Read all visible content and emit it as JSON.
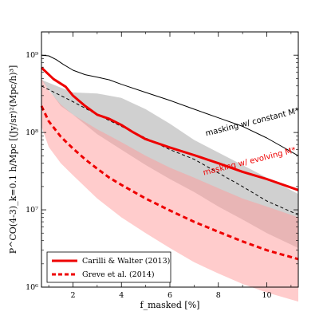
{
  "chart_data": {
    "type": "line",
    "xlabel": "f_masked  [%]",
    "ylabel": "P^CO(4-3)_k=0.1 h/Mpc  [(Jy/sr)²(Mpc/h)³]",
    "xlim": [
      0.7,
      11.3
    ],
    "ylim": [
      1000000.0,
      2000000000.0
    ],
    "yscale": "log",
    "grid": false,
    "legend": {
      "position": "bottom-left",
      "entries": [
        "Carilli & Walter (2013)",
        "Greve et al. (2014)"
      ]
    },
    "x_ticks": [
      {
        "value": 2,
        "label": "2"
      },
      {
        "value": 4,
        "label": "4"
      },
      {
        "value": 6,
        "label": "6"
      },
      {
        "value": 8,
        "label": "8"
      },
      {
        "value": 10,
        "label": "10"
      }
    ],
    "y_ticks": [
      {
        "value": 1000000.0,
        "label": "10⁶"
      },
      {
        "value": 10000000.0,
        "label": "10⁷"
      },
      {
        "value": 100000000.0,
        "label": "10⁸"
      },
      {
        "value": 1000000000.0,
        "label": "10⁹"
      }
    ],
    "annotations": [
      {
        "text": "masking w/ constant M*",
        "color": "#000000",
        "x": 7.5,
        "y": 90000000.0
      },
      {
        "text": "masking w/ evolving M*",
        "color": "#ee0000",
        "x": 7.4,
        "y": 28000000.0
      }
    ],
    "series": [
      {
        "name": "Carilli & Walter (2013)",
        "style": "solid-thick",
        "color": "#ee0000",
        "x": [
          0.7,
          1.2,
          1.7,
          2.0,
          2.5,
          3.0,
          3.5,
          4.0,
          4.5,
          5.0,
          6.0,
          7.0,
          8.0,
          9.0,
          10.0,
          11.3
        ],
        "y": [
          690000000.0,
          490000000.0,
          390000000.0,
          300000000.0,
          220000000.0,
          170000000.0,
          150000000.0,
          125000000.0,
          100000000.0,
          82000000.0,
          64000000.0,
          51000000.0,
          40000000.0,
          31000000.0,
          25000000.0,
          18000000.0
        ]
      },
      {
        "name": "Greve et al. (2014)",
        "style": "dashed-thick",
        "color": "#ee0000",
        "x": [
          0.7,
          1.0,
          1.5,
          2.0,
          2.5,
          3.0,
          3.5,
          4.0,
          5.0,
          6.0,
          7.0,
          8.0,
          9.0,
          10.0,
          11.3
        ],
        "y": [
          220000000.0,
          140000000.0,
          88000000.0,
          62000000.0,
          45000000.0,
          34000000.0,
          26000000.0,
          21000000.0,
          14000000.0,
          9800000.0,
          7000000.0,
          5200000.0,
          3900000.0,
          3000000.0,
          2300000.0
        ]
      },
      {
        "style": "thin-solid",
        "color": "#000000",
        "x": [
          0.7,
          1.0,
          1.3,
          1.6,
          2.0,
          2.5,
          3.0,
          3.5,
          4.0,
          5.0,
          6.0,
          7.0,
          8.0,
          9.0,
          10.0,
          11.3
        ],
        "y": [
          1000000000.0,
          980000000.0,
          880000000.0,
          760000000.0,
          640000000.0,
          560000000.0,
          520000000.0,
          480000000.0,
          420000000.0,
          330000000.0,
          260000000.0,
          200000000.0,
          155000000.0,
          120000000.0,
          85000000.0,
          50000000.0
        ]
      },
      {
        "style": "thin-dashed",
        "color": "#000000",
        "x": [
          0.7,
          1.5,
          2.0,
          3.0,
          4.0,
          5.0,
          6.0,
          7.0,
          8.0,
          9.0,
          10.0,
          11.3
        ],
        "y": [
          400000000.0,
          300000000.0,
          250000000.0,
          170000000.0,
          120000000.0,
          85000000.0,
          60000000.0,
          45000000.0,
          30000000.0,
          20000000.0,
          13000000.0,
          8600000.0
        ]
      }
    ],
    "bands": [
      {
        "color": "#c8c8c8",
        "opacity": 0.85,
        "x": [
          0.7,
          1.5,
          2.0,
          3.0,
          4.0,
          5.0,
          6.0,
          7.0,
          8.0,
          9.0,
          10.0,
          11.3
        ],
        "lower": [
          480000000.0,
          220000000.0,
          170000000.0,
          95000000.0,
          60000000.0,
          38000000.0,
          25000000.0,
          17000000.0,
          11000000.0,
          7500000.0,
          5000000.0,
          3200000.0
        ],
        "upper": [
          480000000.0,
          380000000.0,
          330000000.0,
          320000000.0,
          280000000.0,
          200000000.0,
          130000000.0,
          80000000.0,
          55000000.0,
          38000000.0,
          26000000.0,
          16000000.0
        ]
      },
      {
        "color": "#ff9999",
        "opacity": 0.5,
        "x": [
          0.7,
          1.0,
          1.5,
          2.0,
          3.0,
          4.0,
          5.0,
          6.0,
          7.0,
          8.0,
          9.0,
          10.0,
          11.3
        ],
        "lower": [
          120000000.0,
          65000000.0,
          40000000.0,
          28000000.0,
          14000000.0,
          8000000.0,
          5000000.0,
          3200000.0,
          2100000.0,
          1500000.0,
          1100000.0,
          850000.0,
          650000.0
        ],
        "upper": [
          500000000.0,
          350000000.0,
          230000000.0,
          170000000.0,
          110000000.0,
          75000000.0,
          50000000.0,
          35000000.0,
          26000000.0,
          19000000.0,
          14000000.0,
          11000000.0,
          8000000.0
        ]
      }
    ]
  }
}
